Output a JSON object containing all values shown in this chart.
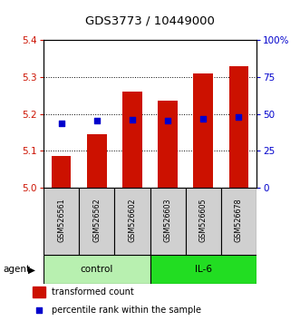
{
  "title": "GDS3773 / 10449000",
  "samples": [
    "GSM526561",
    "GSM526562",
    "GSM526602",
    "GSM526603",
    "GSM526605",
    "GSM526678"
  ],
  "red_values": [
    5.085,
    5.145,
    5.26,
    5.235,
    5.31,
    5.33
  ],
  "blue_values": [
    5.175,
    5.182,
    5.185,
    5.183,
    5.187,
    5.192
  ],
  "ylim": [
    5.0,
    5.4
  ],
  "y_ticks": [
    5.0,
    5.1,
    5.2,
    5.3,
    5.4
  ],
  "y_right_ticks": [
    0,
    25,
    50,
    75,
    100
  ],
  "bar_color": "#cc1100",
  "dot_color": "#0000cc",
  "bar_width": 0.55,
  "dot_size": 22,
  "left_label_color": "#cc1100",
  "right_label_color": "#0000cc",
  "control_color": "#b8f0b0",
  "il6_color": "#22dd22",
  "sample_box_color": "#d0d0d0",
  "legend_red": "transformed count",
  "legend_blue": "percentile rank within the sample",
  "agent_label": "agent"
}
